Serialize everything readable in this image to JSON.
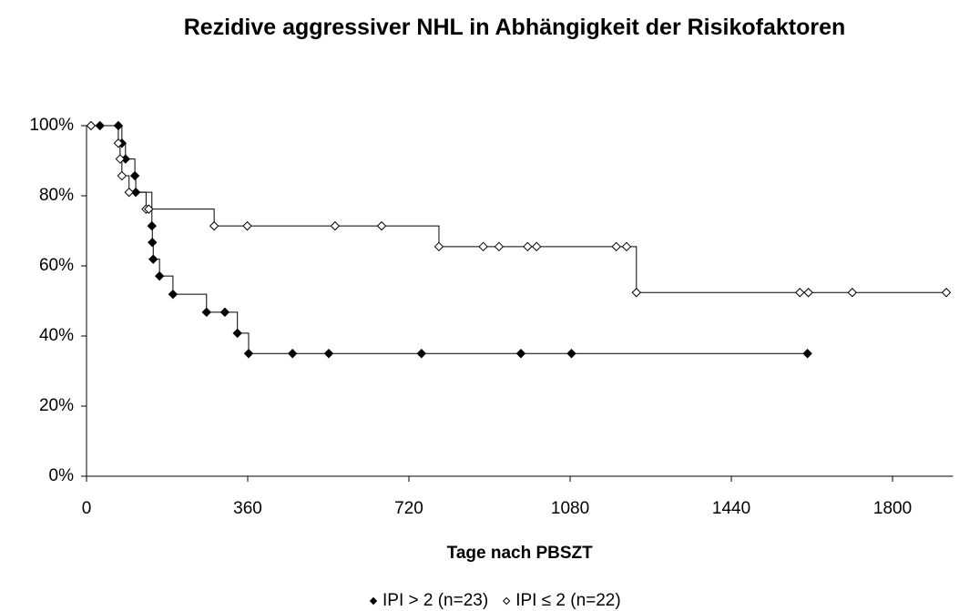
{
  "chart_data": {
    "type": "step",
    "title": "Rezidive aggressiver NHL in Abhängigkeit der Risikofaktoren",
    "x_label": "Tage nach PBSZT",
    "xlim": [
      0,
      1935
    ],
    "xticks": [
      0,
      360,
      720,
      1080,
      1440,
      1800
    ],
    "ylim": [
      0,
      100
    ],
    "yticks": [
      {
        "value": 0,
        "label": "0%"
      },
      {
        "value": 20,
        "label": "20%"
      },
      {
        "value": 40,
        "label": "40%"
      },
      {
        "value": 60,
        "label": "60%"
      },
      {
        "value": 80,
        "label": "80%"
      },
      {
        "value": 100,
        "label": "100%"
      }
    ],
    "legend": "bottom",
    "series": [
      {
        "name": "IPI > 2 (n=23)",
        "color": "#000000",
        "marker": "filled",
        "x": [
          30,
          71,
          79,
          87,
          108,
          110,
          146,
          147,
          149,
          163,
          193,
          268,
          309,
          337,
          362,
          460,
          541,
          748,
          970,
          1083,
          1610
        ],
        "values": [
          100,
          100,
          95,
          90.5,
          85.7,
          81,
          71.4,
          66.7,
          61.9,
          57.1,
          51.9,
          46.8,
          46.8,
          40.8,
          35,
          35,
          35,
          35,
          35,
          35,
          35
        ]
      },
      {
        "name": "IPI ≤ 2 (n=22)",
        "color": "#000000",
        "marker": "hollow",
        "x": [
          10,
          71,
          75,
          79,
          95,
          133,
          139,
          285,
          359,
          555,
          659,
          787,
          886,
          921,
          985,
          1005,
          1183,
          1206,
          1228,
          1593,
          1612,
          1710,
          1920
        ],
        "values": [
          100,
          95,
          90.5,
          85.7,
          81,
          76.2,
          76.2,
          71.4,
          71.4,
          71.4,
          71.4,
          65.5,
          65.5,
          65.5,
          65.5,
          65.5,
          65.5,
          65.5,
          52.4,
          52.4,
          52.4,
          52.4,
          52.4
        ]
      }
    ]
  }
}
